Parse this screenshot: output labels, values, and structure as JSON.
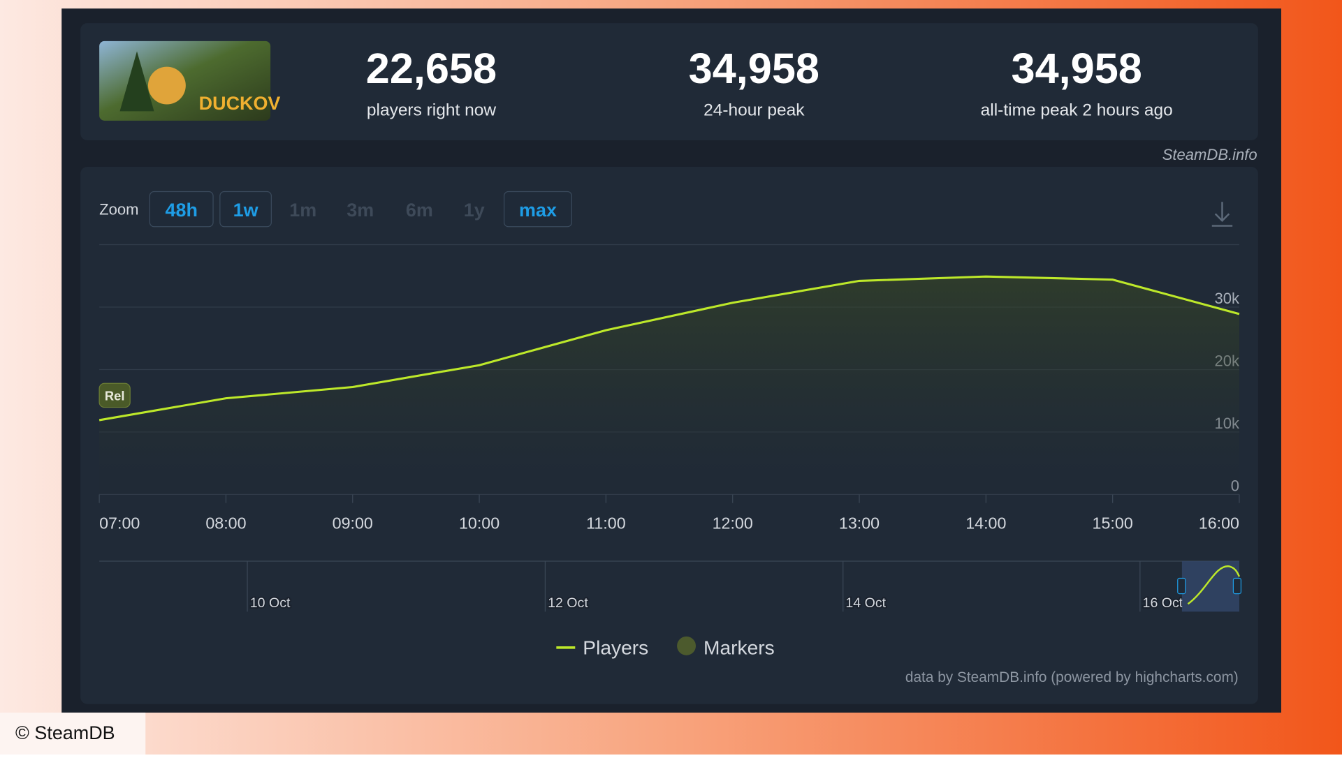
{
  "header": {
    "thumbnail_text": "DUCKOV",
    "stats": [
      {
        "value": "22,658",
        "label": "players right now"
      },
      {
        "value": "34,958",
        "label": "24-hour peak"
      },
      {
        "value": "34,958",
        "label": "all-time peak 2 hours ago"
      }
    ]
  },
  "watermark": "SteamDB.info",
  "zoom": {
    "label": "Zoom",
    "buttons": [
      {
        "text": "48h",
        "active": true
      },
      {
        "text": "1w",
        "active": true
      },
      {
        "text": "1m",
        "active": false
      },
      {
        "text": "3m",
        "active": false
      },
      {
        "text": "6m",
        "active": false
      },
      {
        "text": "1y",
        "active": false
      },
      {
        "text": "max",
        "active": true
      }
    ]
  },
  "chart_data": {
    "type": "line",
    "categories": [
      "07:00",
      "08:00",
      "09:00",
      "10:00",
      "11:00",
      "12:00",
      "13:00",
      "14:00",
      "15:00",
      "16:00"
    ],
    "series": [
      {
        "name": "Players",
        "color": "#bde82a",
        "values": [
          11900,
          15400,
          17200,
          20700,
          26300,
          30700,
          34200,
          34900,
          34400,
          28900
        ]
      }
    ],
    "ylim": [
      0,
      40000
    ],
    "yticks": [
      0,
      {
        "value": 10000,
        "label": "10k"
      },
      {
        "value": 20000,
        "label": "20k"
      },
      {
        "value": 30000,
        "label": "30k"
      }
    ],
    "grid": true,
    "annotations": [
      {
        "label": "Rel",
        "x": "07:00"
      }
    ],
    "markers_legend": "Markers",
    "navigator_labels": [
      "10 Oct",
      "12 Oct",
      "14 Oct",
      "16 Oct"
    ],
    "credits": "data by SteamDB.info (powered by highcharts.com)"
  },
  "copyright": "© SteamDB"
}
